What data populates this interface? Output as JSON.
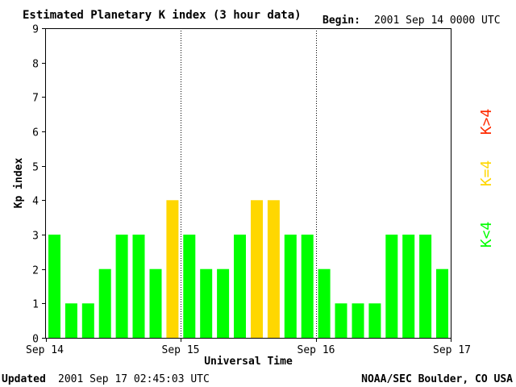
{
  "header": {
    "title": "Estimated Planetary K index (3 hour data)",
    "begin_label": "Begin:",
    "begin_value": "2001 Sep 14 0000 UTC"
  },
  "footer": {
    "updated_label": "Updated",
    "updated_value": "2001 Sep 17 02:45:03 UTC",
    "source": "NOAA/SEC Boulder, CO USA"
  },
  "legend": {
    "high": "K>4",
    "equal": "K=4",
    "low": "K<4"
  },
  "colors": {
    "low": "#00ff00",
    "equal": "#ffd700",
    "high": "#ff2a00"
  },
  "chart_data": {
    "type": "bar",
    "title": "Estimated Planetary K index (3 hour data)",
    "xlabel": "Universal Time",
    "ylabel": "Kp index",
    "ylim": [
      0,
      9
    ],
    "yticks": [
      0,
      1,
      2,
      3,
      4,
      5,
      6,
      7,
      8,
      9
    ],
    "xticks": [
      "Sep 14",
      "Sep 15",
      "Sep 16",
      "Sep 17"
    ],
    "bars_per_day": 8,
    "values": [
      3,
      1,
      1,
      2,
      3,
      3,
      2,
      4,
      3,
      2,
      2,
      3,
      4,
      4,
      3,
      3,
      2,
      1,
      1,
      1,
      3,
      3,
      3,
      2
    ],
    "day_separators": "dotted"
  }
}
